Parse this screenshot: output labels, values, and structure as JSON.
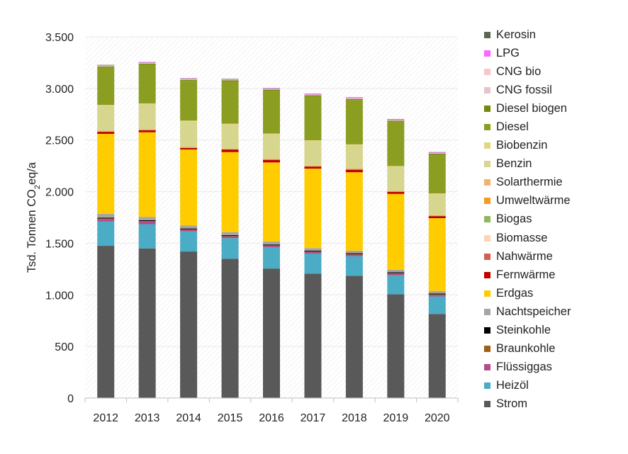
{
  "chart_data": {
    "type": "bar",
    "stacked": true,
    "ylabel": "Tsd. Tonnen CO2eq/a",
    "ylabel_parts": [
      "Tsd. Tonnen CO",
      "2",
      "eq/a"
    ],
    "ylim": [
      0,
      3500
    ],
    "yticks": [
      0,
      500,
      1000,
      1500,
      2000,
      2500,
      3000,
      3500
    ],
    "ytick_labels": [
      "0",
      "500",
      "1.000",
      "1.500",
      "2.000",
      "2.500",
      "3.000",
      "3.500"
    ],
    "grid": true,
    "legend_position": "right",
    "categories": [
      "2012",
      "2013",
      "2014",
      "2015",
      "2016",
      "2017",
      "2018",
      "2019",
      "2020"
    ],
    "series": [
      {
        "name": "Strom",
        "color": "#595959",
        "values": [
          1475,
          1450,
          1420,
          1350,
          1255,
          1205,
          1185,
          1005,
          815
        ]
      },
      {
        "name": "Heizöl",
        "color": "#4BACC6",
        "values": [
          235,
          235,
          195,
          200,
          205,
          195,
          190,
          185,
          170
        ]
      },
      {
        "name": "Flüssiggas",
        "color": "#B44B8C",
        "values": [
          25,
          25,
          15,
          15,
          15,
          15,
          15,
          15,
          15
        ]
      },
      {
        "name": "Braunkohle",
        "color": "#9C6114",
        "values": [
          5,
          5,
          5,
          5,
          5,
          5,
          5,
          5,
          5
        ]
      },
      {
        "name": "Steinkohle",
        "color": "#000000",
        "values": [
          8,
          8,
          8,
          8,
          8,
          8,
          8,
          8,
          8
        ]
      },
      {
        "name": "Nachtspeicher",
        "color": "#A5A5A5",
        "values": [
          37,
          32,
          30,
          30,
          30,
          25,
          25,
          25,
          25
        ]
      },
      {
        "name": "Erdgas",
        "color": "#FFCC00",
        "values": [
          775,
          820,
          735,
          775,
          765,
          770,
          760,
          735,
          705
        ]
      },
      {
        "name": "Fernwärme",
        "color": "#C00000",
        "values": [
          20,
          20,
          15,
          25,
          25,
          20,
          25,
          20,
          20
        ]
      },
      {
        "name": "Nahwärme",
        "color": "#D0604F",
        "values": [
          2,
          2,
          2,
          2,
          2,
          2,
          2,
          2,
          2
        ]
      },
      {
        "name": "Biomasse",
        "color": "#FCD5B5",
        "values": [
          2,
          2,
          2,
          2,
          2,
          2,
          2,
          2,
          2
        ]
      },
      {
        "name": "Biogas",
        "color": "#8DB860",
        "values": [
          2,
          2,
          2,
          2,
          2,
          2,
          2,
          2,
          2
        ]
      },
      {
        "name": "Umweltwärme",
        "color": "#F39C1F",
        "values": [
          2,
          2,
          2,
          2,
          2,
          2,
          2,
          2,
          2
        ]
      },
      {
        "name": "Solarthermie",
        "color": "#F6B26B",
        "values": [
          2,
          2,
          2,
          2,
          2,
          2,
          2,
          2,
          2
        ]
      },
      {
        "name": "Benzin",
        "color": "#D6D68E",
        "values": [
          240,
          240,
          245,
          230,
          235,
          235,
          225,
          230,
          200
        ]
      },
      {
        "name": "Biobenzin",
        "color": "#E2D586",
        "values": [
          10,
          10,
          10,
          10,
          10,
          10,
          10,
          10,
          10
        ]
      },
      {
        "name": "Diesel",
        "color": "#8C9E22",
        "values": [
          363,
          375,
          385,
          410,
          415,
          425,
          430,
          430,
          375
        ]
      },
      {
        "name": "Diesel biogen",
        "color": "#76870E",
        "values": [
          10,
          10,
          10,
          10,
          10,
          10,
          10,
          10,
          10
        ]
      },
      {
        "name": "CNG fossil",
        "color": "#E6C4C9",
        "values": [
          5,
          5,
          5,
          5,
          5,
          5,
          5,
          5,
          5
        ]
      },
      {
        "name": "CNG bio",
        "color": "#F8C6C6",
        "values": [
          2,
          2,
          2,
          2,
          2,
          2,
          2,
          2,
          2
        ]
      },
      {
        "name": "LPG",
        "color": "#FF66FF",
        "values": [
          5,
          5,
          5,
          5,
          5,
          5,
          5,
          5,
          5
        ]
      },
      {
        "name": "Kerosin",
        "color": "#5C6650",
        "values": [
          3,
          3,
          3,
          3,
          3,
          3,
          3,
          3,
          3
        ]
      }
    ]
  }
}
